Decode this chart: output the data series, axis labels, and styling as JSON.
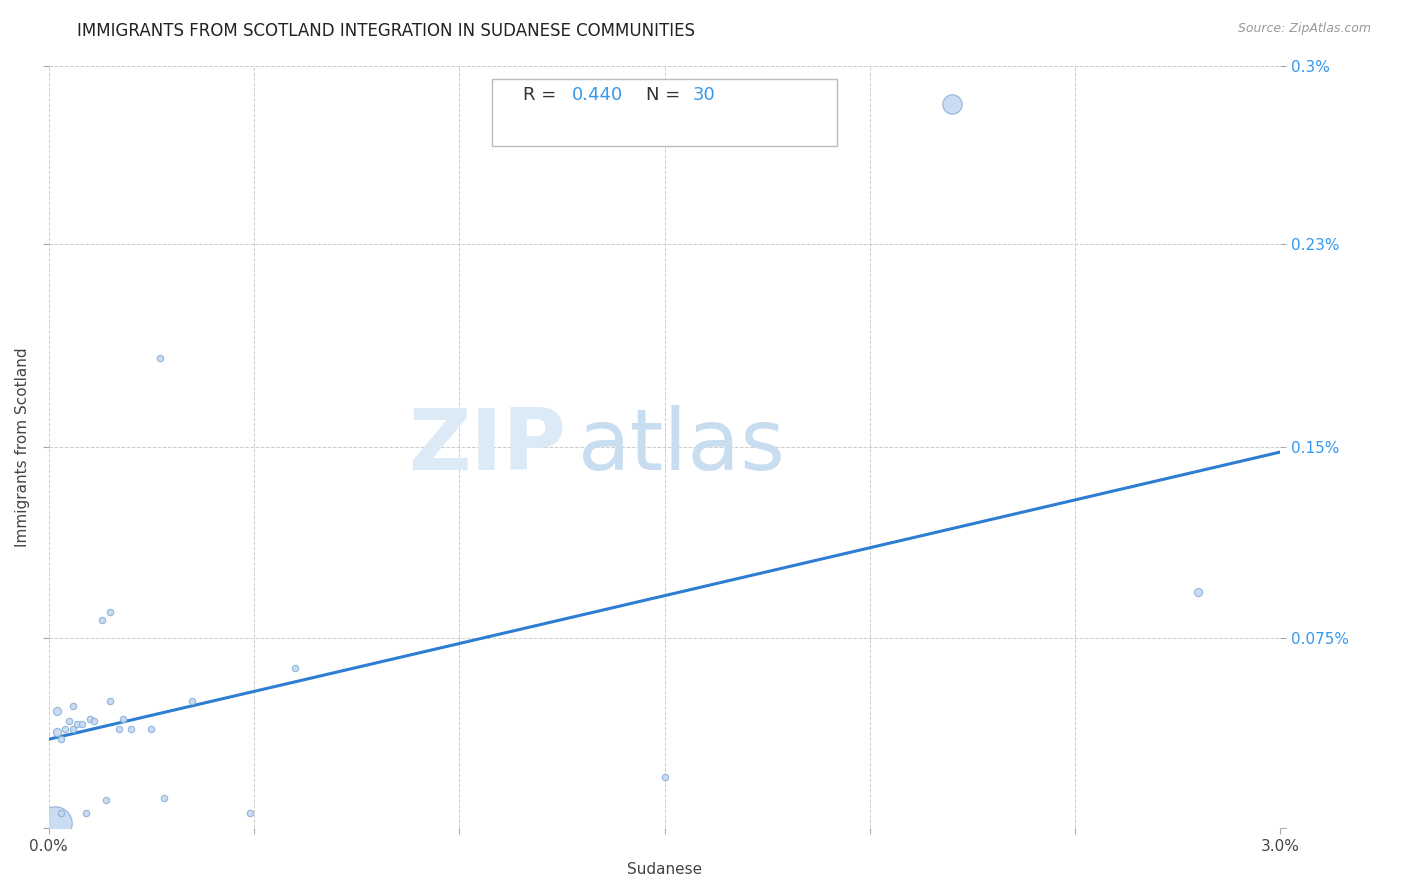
{
  "title": "IMMIGRANTS FROM SCOTLAND INTEGRATION IN SUDANESE COMMUNITIES",
  "source": "Source: ZipAtlas.com",
  "xlabel": "Sudanese",
  "ylabel": "Immigrants from Scotland",
  "xlim": [
    0,
    0.03
  ],
  "ylim": [
    0,
    0.003
  ],
  "xticks": [
    0.0,
    0.005,
    0.01,
    0.015,
    0.02,
    0.025,
    0.03
  ],
  "xtick_labels": [
    "0.0%",
    "",
    "",
    "",
    "",
    "",
    "3.0%"
  ],
  "ytick_labels": [
    "",
    "0.075%",
    "0.15%",
    "0.23%",
    "0.3%"
  ],
  "yticks": [
    0.0,
    0.00075,
    0.0015,
    0.0023,
    0.003
  ],
  "watermark_zip": "ZIP",
  "watermark_atlas": "atlas",
  "line_color": "#2d7dd2",
  "scatter_fill": "#c5d9f0",
  "scatter_edge": "#8ab0d8",
  "background_color": "#ffffff",
  "grid_color": "#cccccc",
  "annot_color_label": "#333333",
  "annot_color_value": "#3399ee",
  "points": [
    [
      0.00015,
      2e-05,
      18
    ],
    [
      0.0002,
      0.00038,
      5
    ],
    [
      0.0002,
      0.00046,
      5
    ],
    [
      0.0003,
      6e-05,
      4
    ],
    [
      0.0003,
      0.00035,
      4
    ],
    [
      0.0004,
      0.00039,
      4
    ],
    [
      0.0005,
      0.00042,
      4
    ],
    [
      0.0006,
      0.00039,
      4
    ],
    [
      0.0006,
      0.00048,
      4
    ],
    [
      0.0007,
      0.00041,
      4
    ],
    [
      0.0008,
      0.00041,
      4
    ],
    [
      0.0009,
      6e-05,
      4
    ],
    [
      0.001,
      0.00043,
      4
    ],
    [
      0.0011,
      0.00042,
      4
    ],
    [
      0.0013,
      0.00082,
      4
    ],
    [
      0.0014,
      0.00011,
      4
    ],
    [
      0.0015,
      0.00085,
      4
    ],
    [
      0.0015,
      0.0005,
      4
    ],
    [
      0.0017,
      0.00039,
      4
    ],
    [
      0.0018,
      0.00043,
      4
    ],
    [
      0.002,
      0.00039,
      4
    ],
    [
      0.0025,
      0.00039,
      4
    ],
    [
      0.0027,
      0.00185,
      4
    ],
    [
      0.0028,
      0.00012,
      4
    ],
    [
      0.0035,
      0.0005,
      4
    ],
    [
      0.0049,
      6e-05,
      4
    ],
    [
      0.006,
      0.00063,
      4
    ],
    [
      0.015,
      0.0002,
      4
    ],
    [
      0.022,
      0.00285,
      11
    ],
    [
      0.028,
      0.00093,
      5
    ]
  ],
  "regression_line": [
    [
      0.0,
      0.00035
    ],
    [
      0.03,
      0.00148
    ]
  ],
  "title_fontsize": 12,
  "label_fontsize": 11,
  "tick_fontsize": 11,
  "annot_fontsize": 13,
  "source_fontsize": 9
}
